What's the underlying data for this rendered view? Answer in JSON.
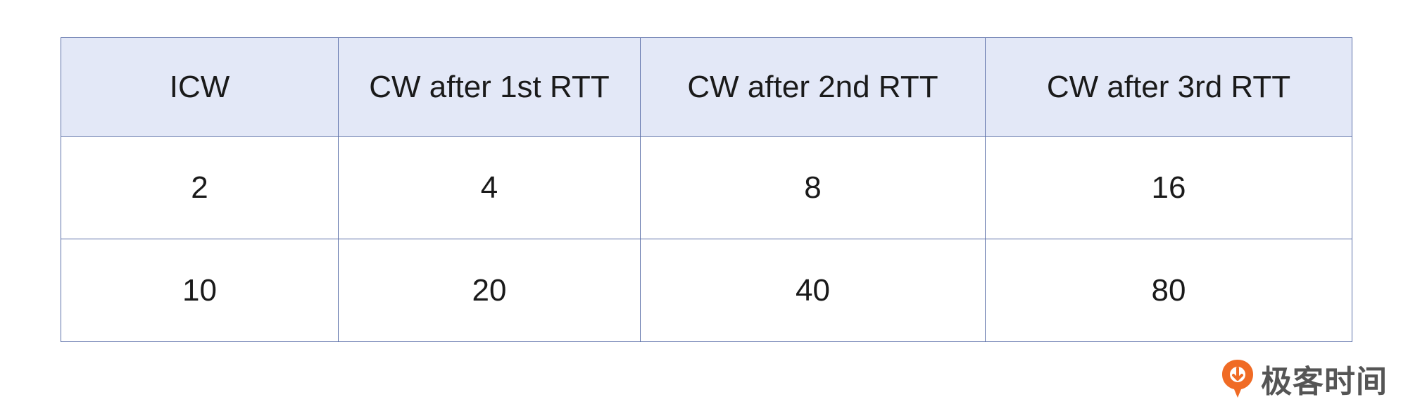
{
  "table": {
    "headers": [
      "ICW",
      "CW after 1st RTT",
      "CW after 2nd RTT",
      "CW after 3rd RTT"
    ],
    "rows": [
      [
        "2",
        "4",
        "8",
        "16"
      ],
      [
        "10",
        "20",
        "40",
        "80"
      ]
    ]
  },
  "watermark": {
    "text": "极客时间",
    "icon": "geektime-logo-icon",
    "icon_color": "#f06b25",
    "text_color": "#555555"
  },
  "colors": {
    "header_bg": "#e3e8f7",
    "border": "#5b6fa8",
    "cell_bg": "#ffffff"
  }
}
